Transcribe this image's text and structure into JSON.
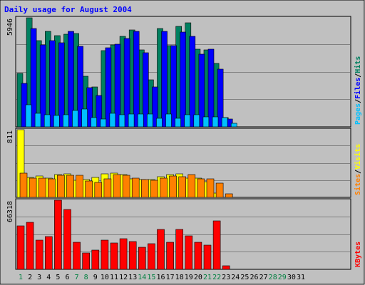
{
  "chart_data": {
    "type": "bar",
    "title": "Daily usage for August 2004",
    "days": [
      "1",
      "2",
      "3",
      "4",
      "5",
      "6",
      "7",
      "8",
      "9",
      "10",
      "11",
      "12",
      "13",
      "14",
      "15",
      "16",
      "17",
      "18",
      "19",
      "20",
      "21",
      "22",
      "23",
      "24",
      "25",
      "26",
      "27",
      "28",
      "29",
      "30",
      "31"
    ],
    "weekend_days": [
      "1",
      "7",
      "8",
      "14",
      "15",
      "21",
      "22",
      "28",
      "29"
    ],
    "colors": {
      "title": "#0000ff",
      "background": "#c0c0c0",
      "grid": "#808080",
      "pages": "#00c0ff",
      "files": "#0000ff",
      "hits": "#008060",
      "visits": "#ffff00",
      "sites": "#ff8000",
      "kbytes": "#ff0000",
      "weekday_label": "#000000",
      "weekend_label": "#008040"
    },
    "panels": [
      {
        "name": "pages-files-hits",
        "max_label": "5946",
        "ymax": 5946,
        "axis_labels": [
          {
            "text": "Pages",
            "color": "#00c0ff"
          },
          {
            "text": "Files",
            "color": "#0000ff"
          },
          {
            "text": "Hits",
            "color": "#008060"
          }
        ],
        "series": [
          {
            "key": "hits",
            "color": "#008060",
            "values": [
              2900,
              5946,
              4690,
              5220,
              4960,
              5057,
              5097,
              2740,
              2192,
              4160,
              4450,
              4950,
              5300,
              4200,
              2560,
              5370,
              4420,
              5497,
              5657,
              4250,
              4190,
              3450,
              500,
              0,
              0,
              0,
              0,
              0,
              0,
              0,
              0
            ]
          },
          {
            "key": "files",
            "color": "#0000ff",
            "values": [
              2370,
              5370,
              4460,
              4700,
              4570,
              5200,
              4400,
              2150,
              1720,
              4300,
              4490,
              4810,
              5220,
              4050,
              2180,
              5210,
              4430,
              5170,
              4920,
              3960,
              4230,
              3130,
              440,
              0,
              0,
              0,
              0,
              0,
              0,
              0,
              0
            ]
          },
          {
            "key": "pages",
            "color": "#00c0ff",
            "values": [
              1190,
              740,
              680,
              640,
              670,
              890,
              990,
              510,
              440,
              720,
              670,
              690,
              690,
              700,
              450,
              690,
              460,
              680,
              660,
              540,
              560,
              510,
              180,
              0,
              0,
              0,
              0,
              0,
              0,
              0,
              0
            ]
          }
        ]
      },
      {
        "name": "visits-sites",
        "max_label": "811",
        "ymax": 811,
        "axis_labels": [
          {
            "text": "Sites",
            "color": "#ff8000"
          },
          {
            "text": "Visits",
            "color": "#ffff00"
          }
        ],
        "series": [
          {
            "key": "visits",
            "color": "#ffff00",
            "values": [
              811,
              240,
              260,
              230,
              270,
              280,
              205,
              210,
              240,
              280,
              290,
              270,
              220,
              210,
              210,
              250,
              270,
              280,
              230,
              230,
              190,
              50,
              0,
              0,
              0,
              0,
              0,
              0,
              0,
              0,
              0
            ]
          },
          {
            "key": "sites",
            "color": "#ff8000",
            "values": [
              290,
              232,
              233,
              220,
              262,
              266,
              262,
              200,
              180,
              222,
              270,
              264,
              233,
              214,
              209,
              234,
              253,
              250,
              270,
              223,
              220,
              172,
              40,
              0,
              0,
              0,
              0,
              0,
              0,
              0,
              0
            ]
          }
        ]
      },
      {
        "name": "kbytes",
        "max_label": "66318",
        "ymax": 66318,
        "axis_labels": [
          {
            "text": "KBytes",
            "color": "#ff0000"
          }
        ],
        "series": [
          {
            "key": "kbytes",
            "color": "#ff0000",
            "values": [
              41700,
              44900,
              27800,
              31700,
              66318,
              57400,
              25700,
              15600,
              18600,
              28200,
              25300,
              29300,
              26600,
              20900,
              24700,
              38300,
              25700,
              38000,
              32000,
              26200,
              23500,
              46700,
              3400,
              0,
              0,
              0,
              0,
              0,
              0,
              0,
              0
            ]
          }
        ]
      }
    ]
  }
}
